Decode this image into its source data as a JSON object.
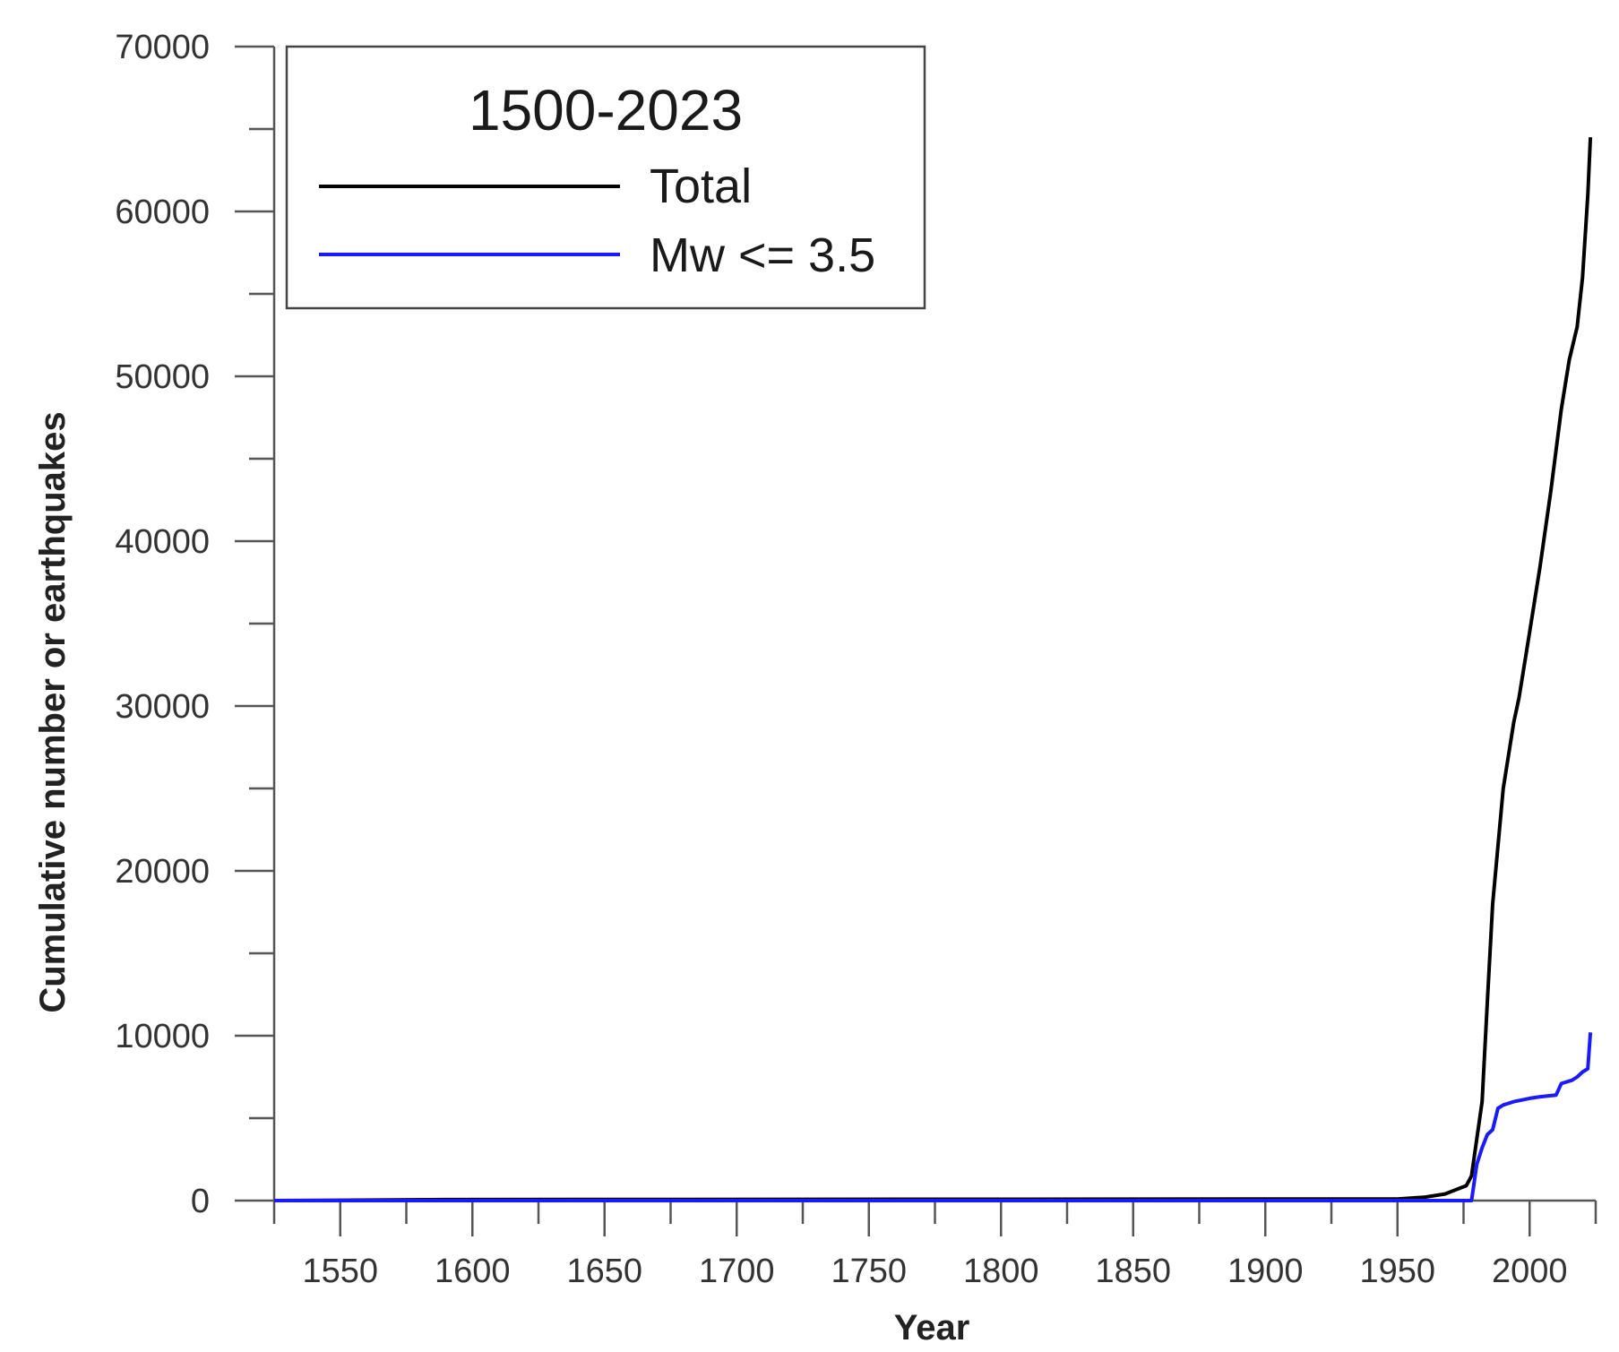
{
  "chart_data": {
    "type": "line",
    "title": "",
    "xlabel": "Year",
    "ylabel": "Cumulative number or earthquakes",
    "xlim": [
      1525,
      2025
    ],
    "ylim": [
      0,
      70000
    ],
    "x_ticks": [
      1550,
      1600,
      1650,
      1700,
      1750,
      1800,
      1850,
      1900,
      1950,
      2000
    ],
    "y_ticks": [
      0,
      10000,
      20000,
      30000,
      40000,
      50000,
      60000,
      70000
    ],
    "grid": false,
    "legend": {
      "title": "1500-2023",
      "placement": "top-left"
    },
    "series": [
      {
        "name": "Total",
        "color": "#000000",
        "x": [
          1525,
          1590,
          1950,
          1960,
          1968,
          1976,
          1978,
          1982,
          1984,
          1986,
          1990,
          1994,
          1996,
          2000,
          2004,
          2008,
          2012,
          2015,
          2018,
          2020,
          2022,
          2023
        ],
        "y": [
          0,
          60,
          100,
          200,
          400,
          900,
          1500,
          6000,
          12000,
          18000,
          25000,
          29000,
          30500,
          34500,
          38500,
          43000,
          48000,
          51000,
          53000,
          56000,
          61000,
          64500
        ]
      },
      {
        "name": "Mw <= 3.5",
        "color": "#1a1aff",
        "x": [
          1525,
          1976,
          1978,
          1980,
          1982,
          1984,
          1986,
          1988,
          1990,
          1994,
          2000,
          2004,
          2010,
          2012,
          2016,
          2018,
          2020,
          2022,
          2023
        ],
        "y": [
          0,
          0,
          0,
          2200,
          3200,
          4000,
          4300,
          5600,
          5800,
          6000,
          6200,
          6300,
          6400,
          7100,
          7300,
          7500,
          7800,
          8000,
          10200
        ]
      }
    ]
  }
}
